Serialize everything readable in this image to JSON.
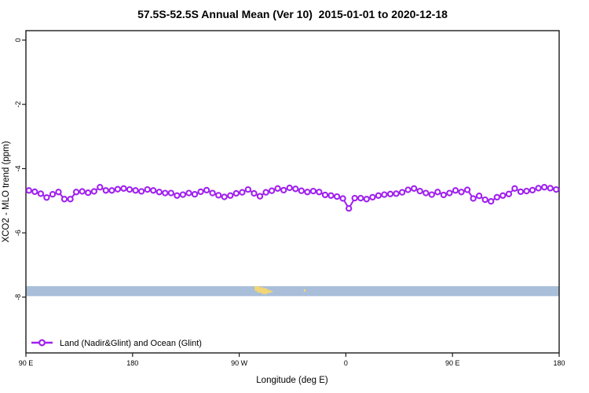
{
  "title": "57.5S-52.5S Annual Mean (Ver 10)  2015-01-01 to 2020-12-18",
  "chart_data": {
    "type": "line",
    "title": "57.5S-52.5S Annual Mean (Ver 10)  2015-01-01 to 2020-12-18",
    "xlabel": "Longitude (deg E)",
    "ylabel": "XCO2 - MLO trend (ppm)",
    "grid": false,
    "xlim": [
      90,
      540
    ],
    "ylim": [
      -9.75,
      0.3
    ],
    "x_ticks": [
      {
        "value": 90,
        "label": "90 E"
      },
      {
        "value": 180,
        "label": "180"
      },
      {
        "value": 270,
        "label": "90 W"
      },
      {
        "value": 360,
        "label": "0"
      },
      {
        "value": 450,
        "label": "90 E"
      },
      {
        "value": 540,
        "label": "180"
      }
    ],
    "y_ticks": [
      {
        "value": 0,
        "label": "0"
      },
      {
        "value": -2,
        "label": "-2"
      },
      {
        "value": -4,
        "label": "-4"
      },
      {
        "value": -6,
        "label": "-6"
      },
      {
        "value": -8,
        "label": "-8"
      }
    ],
    "legend": {
      "position": "bottom-left",
      "label": "Land (Nadir&Glint) and Ocean (Glint)"
    },
    "series": [
      {
        "name": "Land (Nadir&Glint) and Ocean (Glint)",
        "color": "#A020F0",
        "marker": "open-circle",
        "x": [
          92.5,
          97.5,
          102.5,
          107.5,
          112.5,
          117.5,
          122.5,
          127.5,
          132.5,
          137.5,
          142.5,
          147.5,
          152.5,
          157.5,
          162.5,
          167.5,
          172.5,
          177.5,
          182.5,
          187.5,
          192.5,
          197.5,
          202.5,
          207.5,
          212.5,
          217.5,
          222.5,
          227.5,
          232.5,
          237.5,
          242.5,
          247.5,
          252.5,
          257.5,
          262.5,
          267.5,
          272.5,
          277.5,
          282.5,
          287.5,
          292.5,
          297.5,
          302.5,
          307.5,
          312.5,
          317.5,
          322.5,
          327.5,
          332.5,
          337.5,
          342.5,
          347.5,
          352.5,
          357.5,
          362.5,
          367.5,
          372.5,
          377.5,
          382.5,
          387.5,
          392.5,
          397.5,
          402.5,
          407.5,
          412.5,
          417.5,
          422.5,
          427.5,
          432.5,
          437.5,
          442.5,
          447.5,
          452.5,
          457.5,
          462.5,
          467.5,
          472.5,
          477.5,
          482.5,
          487.5,
          492.5,
          497.5,
          502.5,
          507.5,
          512.5,
          517.5,
          522.5,
          527.5,
          532.5,
          537.5
        ],
        "values": [
          -4.68,
          -4.72,
          -4.78,
          -4.9,
          -4.8,
          -4.73,
          -4.95,
          -4.95,
          -4.73,
          -4.71,
          -4.75,
          -4.71,
          -4.58,
          -4.68,
          -4.68,
          -4.64,
          -4.62,
          -4.65,
          -4.68,
          -4.71,
          -4.65,
          -4.68,
          -4.73,
          -4.76,
          -4.76,
          -4.84,
          -4.81,
          -4.76,
          -4.8,
          -4.72,
          -4.67,
          -4.76,
          -4.83,
          -4.88,
          -4.84,
          -4.77,
          -4.74,
          -4.65,
          -4.77,
          -4.86,
          -4.74,
          -4.69,
          -4.62,
          -4.67,
          -4.6,
          -4.63,
          -4.69,
          -4.73,
          -4.7,
          -4.73,
          -4.82,
          -4.84,
          -4.87,
          -4.93,
          -5.24,
          -4.92,
          -4.92,
          -4.95,
          -4.89,
          -4.84,
          -4.81,
          -4.79,
          -4.78,
          -4.74,
          -4.66,
          -4.62,
          -4.7,
          -4.76,
          -4.81,
          -4.73,
          -4.82,
          -4.76,
          -4.68,
          -4.73,
          -4.66,
          -4.93,
          -4.85,
          -4.97,
          -5.02,
          -4.89,
          -4.84,
          -4.79,
          -4.62,
          -4.72,
          -4.7,
          -4.67,
          -4.61,
          -4.58,
          -4.61,
          -4.65
        ]
      }
    ],
    "surface_strip": {
      "ocean_color": "#A9BED9",
      "land_color": "#F3D674",
      "value_top": -7.66,
      "value_bottom": -7.97,
      "land_marks": [
        {
          "lon_start": 283.0,
          "lon_end": 287.0,
          "top_frac": 0.0,
          "bottom_frac": 0.45
        },
        {
          "lon_start": 285.0,
          "lon_end": 290.0,
          "top_frac": 0.1,
          "bottom_frac": 0.65
        },
        {
          "lon_start": 289.0,
          "lon_end": 293.5,
          "top_frac": 0.2,
          "bottom_frac": 0.8
        },
        {
          "lon_start": 292.5,
          "lon_end": 296.0,
          "top_frac": 0.35,
          "bottom_frac": 0.7
        },
        {
          "lon_start": 296.0,
          "lon_end": 298.0,
          "top_frac": 0.45,
          "bottom_frac": 0.62
        },
        {
          "lon_start": 324.5,
          "lon_end": 326.0,
          "top_frac": 0.3,
          "bottom_frac": 0.55
        }
      ]
    }
  }
}
